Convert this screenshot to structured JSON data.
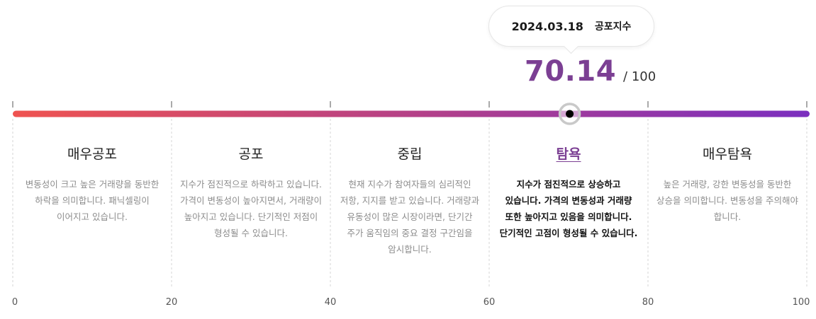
{
  "tooltip": {
    "date": "2024.03.18",
    "label": "공포지수"
  },
  "score": {
    "value": "70.14",
    "max": "/ 100",
    "current": 70.14
  },
  "scale": {
    "min": 0,
    "max": 100,
    "ticks": [
      "0",
      "20",
      "40",
      "60",
      "80",
      "100"
    ],
    "gradient_start": "#ef5350",
    "gradient_end": "#7b2fbf",
    "accent": "#7b3f93"
  },
  "zones": [
    {
      "title": "매우공포",
      "desc": "변동성이 크고 높은 거래량을 동반한 하락을 의미합니다. 패닉셀링이 이어지고 있습니다.",
      "active": false
    },
    {
      "title": "공포",
      "desc": "지수가 점진적으로 하락하고 있습니다. 가격이 변동성이 높아지면서, 거래량이 높아지고 있습니다. 단기적인 저점이 형성될 수 있습니다.",
      "active": false
    },
    {
      "title": "중립",
      "desc": "현재 지수가 참여자들의 심리적인 저항, 지지를 받고 있습니다. 거래량과 유동성이 많은 시장이라면, 단기간 주가 움직임의 중요 결정 구간임을 암시합니다.",
      "active": false
    },
    {
      "title": "탐욕",
      "desc": "지수가 점진적으로 상승하고 있습니다. 가격의 변동성과 거래량 또한 높아지고 있음을 의미합니다. 단기적인 고점이 형성될 수 있습니다.",
      "active": true
    },
    {
      "title": "매우탐욕",
      "desc": "높은 거래량, 강한 변동성을 동반한 상승을 의미합니다. 변동성을 주의해야 합니다.",
      "active": false
    }
  ]
}
